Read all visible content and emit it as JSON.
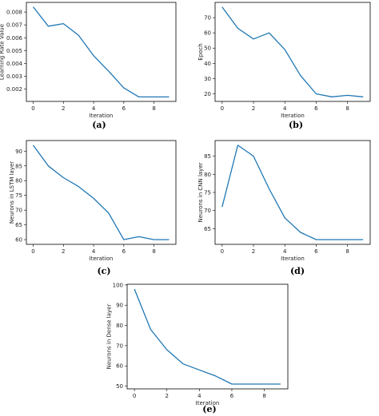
{
  "colors": {
    "line": "#1f77b4",
    "axis": "#000000",
    "background": "#ffffff"
  },
  "chart_data": [
    {
      "type": "line",
      "caption": "(a)",
      "xlabel": "Iteration",
      "ylabel": "Learning Rate Value",
      "x": [
        0,
        1,
        2,
        3,
        4,
        5,
        6,
        7,
        8,
        9
      ],
      "values": [
        0.0084,
        0.0069,
        0.0071,
        0.0062,
        0.0046,
        0.0034,
        0.0021,
        0.0014,
        0.0014,
        0.0014
      ],
      "xlim": [
        -0.45,
        9.45
      ],
      "ylim": [
        0.00105,
        0.00875
      ],
      "xticks": [
        0,
        2,
        4,
        6,
        8
      ],
      "xtick_labels": [
        "0",
        "2",
        "4",
        "6",
        "8"
      ],
      "yticks": [
        0.002,
        0.003,
        0.004,
        0.005,
        0.006,
        0.007,
        0.008
      ],
      "ytick_labels": [
        "0.002",
        "0.003",
        "0.004",
        "0.005",
        "0.006",
        "0.007",
        "0.008"
      ]
    },
    {
      "type": "line",
      "caption": "(b)",
      "xlabel": "Iteration",
      "ylabel": "Epoch",
      "x": [
        0,
        1,
        2,
        3,
        4,
        5,
        6,
        7,
        8,
        9
      ],
      "values": [
        77,
        63,
        56,
        60,
        49,
        32,
        20,
        18,
        19,
        18
      ],
      "xlim": [
        -0.45,
        9.45
      ],
      "ylim": [
        15,
        80
      ],
      "xticks": [
        0,
        2,
        4,
        6,
        8
      ],
      "xtick_labels": [
        "0",
        "2",
        "4",
        "6",
        "8"
      ],
      "yticks": [
        20,
        30,
        40,
        50,
        60,
        70
      ],
      "ytick_labels": [
        "20",
        "30",
        "40",
        "50",
        "60",
        "70"
      ]
    },
    {
      "type": "line",
      "caption": "(c)",
      "xlabel": "Iteration",
      "ylabel": "Neurons in LSTM layer",
      "x": [
        0,
        1,
        2,
        3,
        4,
        5,
        6,
        7,
        8,
        9
      ],
      "values": [
        92,
        85,
        81,
        78,
        74,
        69,
        60,
        61,
        60,
        60
      ],
      "xlim": [
        -0.45,
        9.45
      ],
      "ylim": [
        58.4,
        93.6
      ],
      "xticks": [
        0,
        2,
        4,
        6,
        8
      ],
      "xtick_labels": [
        "0",
        "2",
        "4",
        "6",
        "8"
      ],
      "yticks": [
        60,
        65,
        70,
        75,
        80,
        85,
        90
      ],
      "ytick_labels": [
        "60",
        "65",
        "70",
        "75",
        "80",
        "85",
        "90"
      ]
    },
    {
      "type": "line",
      "caption": "(d)",
      "xlabel": "Iteration",
      "ylabel": "Neurons in CNN layer",
      "x": [
        0,
        1,
        2,
        3,
        4,
        5,
        6,
        7,
        8,
        9
      ],
      "values": [
        71,
        88,
        85,
        76,
        68,
        64,
        62,
        62,
        62,
        62
      ],
      "xlim": [
        -0.45,
        9.45
      ],
      "ylim": [
        60.7,
        89.3
      ],
      "xticks": [
        0,
        2,
        4,
        6,
        8
      ],
      "xtick_labels": [
        "0",
        "2",
        "4",
        "6",
        "8"
      ],
      "yticks": [
        65,
        70,
        75,
        80,
        85
      ],
      "ytick_labels": [
        "65",
        "70",
        "75",
        "80",
        "85"
      ]
    },
    {
      "type": "line",
      "caption": "(e)",
      "xlabel": "Iteration",
      "ylabel": "Neurons in Dense layer",
      "x": [
        0,
        1,
        2,
        3,
        4,
        5,
        6,
        7,
        8,
        9
      ],
      "values": [
        98,
        78,
        68,
        61,
        58,
        55,
        51,
        51,
        51,
        51
      ],
      "xlim": [
        -0.45,
        9.45
      ],
      "ylim": [
        48.65,
        100.35
      ],
      "xticks": [
        0,
        2,
        4,
        6,
        8
      ],
      "xtick_labels": [
        "0",
        "2",
        "4",
        "6",
        "8"
      ],
      "yticks": [
        50,
        60,
        70,
        80,
        90,
        100
      ],
      "ytick_labels": [
        "50",
        "60",
        "70",
        "80",
        "90",
        "100"
      ]
    }
  ]
}
